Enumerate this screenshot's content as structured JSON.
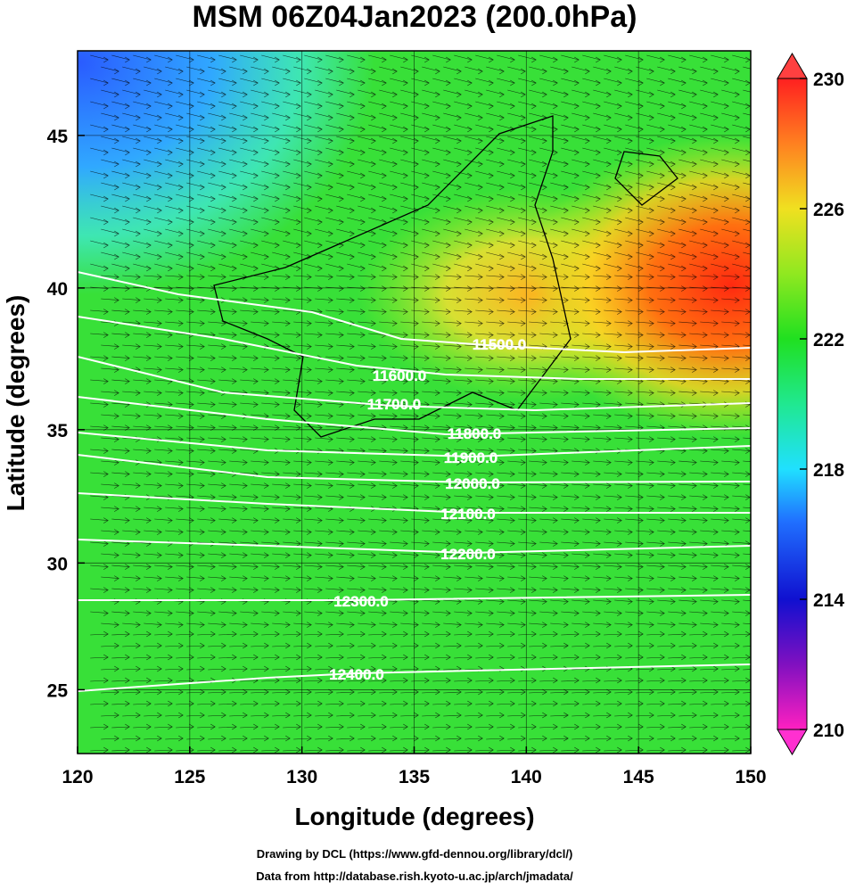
{
  "title": "MSM 06Z04Jan2023 (200.0hPa)",
  "x_axis": {
    "label": "Longitude (degrees)",
    "lim": [
      120,
      150
    ],
    "ticks": [
      120,
      125,
      130,
      135,
      140,
      145,
      150
    ]
  },
  "y_axis": {
    "label": "Latitude  (degrees)",
    "projection": "mercator",
    "lim": [
      22.4,
      47.6
    ],
    "ticks": [
      25,
      30,
      35,
      40,
      45
    ]
  },
  "colorbar": {
    "lim": [
      210,
      230
    ],
    "ticks": [
      210,
      214,
      218,
      222,
      226,
      230
    ]
  },
  "contours": [
    {
      "value": 11500,
      "label": "11500.0"
    },
    {
      "value": 11600,
      "label": "11600.0"
    },
    {
      "value": 11700,
      "label": "11700.0"
    },
    {
      "value": 11800,
      "label": "11800.0"
    },
    {
      "value": 11900,
      "label": "11900.0"
    },
    {
      "value": 12000,
      "label": "12000.0"
    },
    {
      "value": 12100,
      "label": "12100.0"
    },
    {
      "value": 12200,
      "label": "12200.0"
    },
    {
      "value": 12300,
      "label": "12300.0"
    },
    {
      "value": 12400,
      "label": "12400.0"
    }
  ],
  "credits": [
    "Drawing by DCL (https://www.gfd-dennou.org/library/dcl/)",
    "Data from http://database.rish.kyoto-u.ac.jp/arch/jmadata/"
  ]
}
